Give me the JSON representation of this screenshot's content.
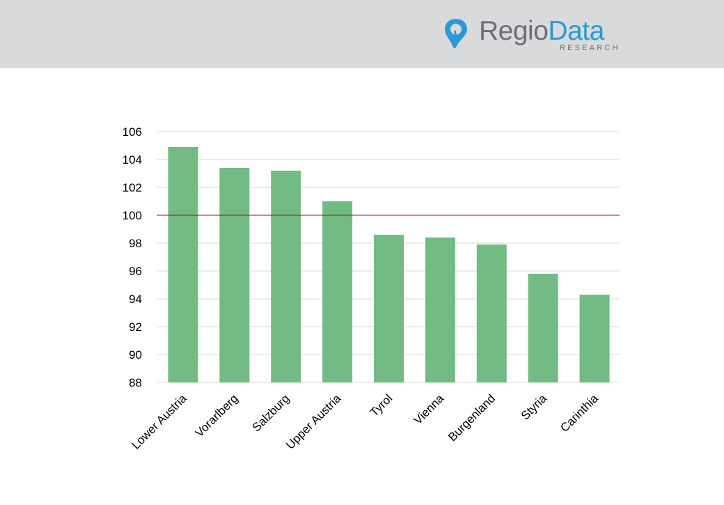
{
  "brand": {
    "name_part1": "Regio",
    "name_part2": "Data",
    "subtitle": "RESEARCH",
    "icon": "map-pin-icon",
    "colors": {
      "header_bg": "#d9dadb",
      "text_gray": "#6b6f73",
      "accent_blue": "#2a9ad6"
    }
  },
  "chart_data": {
    "type": "bar",
    "categories": [
      "Lower Austria",
      "Vorarlberg",
      "Salzburg",
      "Upper Austria",
      "Tyrol",
      "Vienna",
      "Burgenland",
      "Styria",
      "Carinthia"
    ],
    "values": [
      104.9,
      103.4,
      103.2,
      101.0,
      98.6,
      98.4,
      97.9,
      95.8,
      94.3
    ],
    "ylim": [
      88,
      106
    ],
    "yticks": [
      88,
      90,
      92,
      94,
      96,
      98,
      100,
      102,
      104,
      106
    ],
    "reference_line": 100,
    "grid": true,
    "bar_color": "#73bb85",
    "reference_color": "#8b1a1a",
    "title": "",
    "xlabel": "",
    "ylabel": ""
  }
}
